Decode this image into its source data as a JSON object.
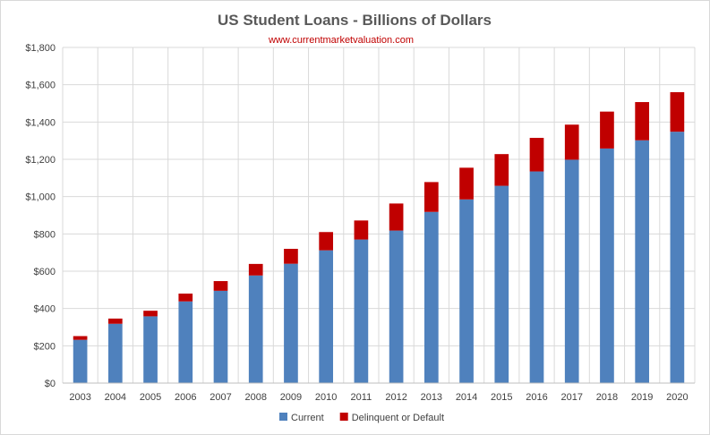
{
  "chart_data": {
    "type": "bar",
    "stacked": true,
    "title": "US Student Loans - Billions of Dollars",
    "subtitle": "www.currentmarketvaluation.com",
    "xlabel": "",
    "ylabel": "",
    "ylim": [
      0,
      1800
    ],
    "y_ticks": [
      0,
      200,
      400,
      600,
      800,
      1000,
      1200,
      1400,
      1600,
      1800
    ],
    "y_tick_labels": [
      "$0",
      "$200",
      "$400",
      "$600",
      "$800",
      "$1,000",
      "$1,200",
      "$1,400",
      "$1,600",
      "$1,800"
    ],
    "grid": true,
    "legend_position": "bottom",
    "categories": [
      "2003",
      "2004",
      "2005",
      "2006",
      "2007",
      "2008",
      "2009",
      "2010",
      "2011",
      "2012",
      "2013",
      "2014",
      "2015",
      "2016",
      "2017",
      "2018",
      "2019",
      "2020"
    ],
    "series": [
      {
        "name": "Current",
        "color": "#4f81bd",
        "values": [
          232,
          318,
          358,
          438,
          495,
          577,
          640,
          712,
          770,
          818,
          918,
          985,
          1058,
          1135,
          1198,
          1258,
          1302,
          1348
        ]
      },
      {
        "name": "Delinquent or Default",
        "color": "#c00000",
        "values": [
          20,
          28,
          30,
          42,
          52,
          62,
          80,
          98,
          102,
          145,
          160,
          170,
          170,
          180,
          188,
          198,
          205,
          212
        ]
      }
    ]
  },
  "colors": {
    "gridline": "#d9d9d9",
    "axis": "#bfbfbf"
  }
}
